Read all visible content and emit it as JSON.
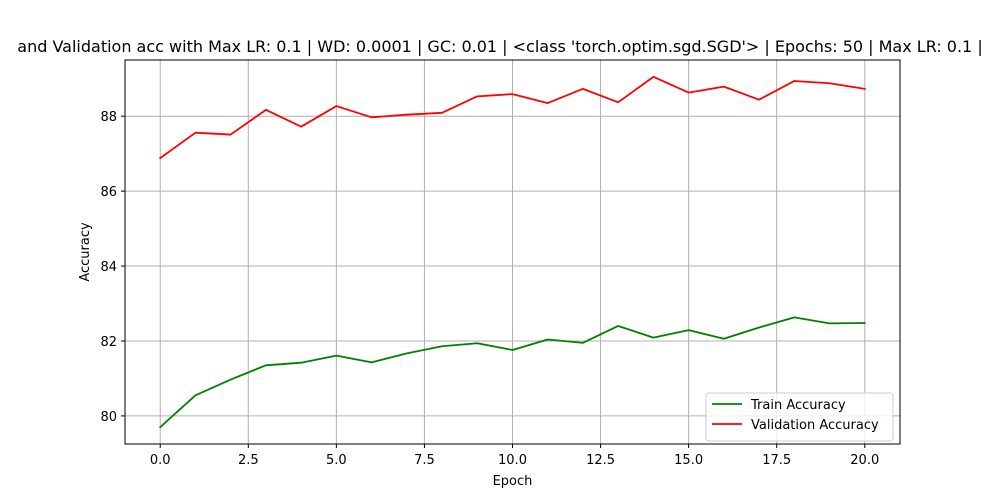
{
  "chart_data": {
    "type": "line",
    "title": "and Validation acc with Max LR: 0.1 | WD: 0.0001 | GC: 0.01 | <class 'torch.optim.sgd.SGD'> | Epochs: 50 | Max LR: 0.1 |",
    "xlabel": "Epoch",
    "ylabel": "Accuracy",
    "xlim": [
      -1.0,
      21.0
    ],
    "ylim": [
      79.25,
      89.5
    ],
    "xticks": [
      0.0,
      2.5,
      5.0,
      7.5,
      10.0,
      12.5,
      15.0,
      17.5,
      20.0
    ],
    "xtick_labels": [
      "0.0",
      "2.5",
      "5.0",
      "7.5",
      "10.0",
      "12.5",
      "15.0",
      "17.5",
      "20.0"
    ],
    "yticks": [
      80,
      82,
      84,
      86,
      88
    ],
    "ytick_labels": [
      "80",
      "82",
      "84",
      "86",
      "88"
    ],
    "grid": true,
    "legend_position": "lower-right",
    "x": [
      0,
      1,
      2,
      3,
      4,
      5,
      6,
      7,
      8,
      9,
      10,
      11,
      12,
      13,
      14,
      15,
      16,
      17,
      18,
      19,
      20
    ],
    "series": [
      {
        "name": "Train Accuracy",
        "color": "#008000",
        "values": [
          79.7,
          80.55,
          80.97,
          81.35,
          81.42,
          81.61,
          81.43,
          81.67,
          81.86,
          81.94,
          81.76,
          82.04,
          81.95,
          82.4,
          82.09,
          82.29,
          82.06,
          82.36,
          82.63,
          82.47,
          82.48
        ]
      },
      {
        "name": "Validation Accuracy",
        "color": "#ff0000",
        "values": [
          86.88,
          87.56,
          87.51,
          88.17,
          87.72,
          88.27,
          87.97,
          88.04,
          88.09,
          88.53,
          88.59,
          88.35,
          88.73,
          88.37,
          89.05,
          88.63,
          88.79,
          88.44,
          88.94,
          88.88,
          88.73
        ]
      }
    ]
  }
}
